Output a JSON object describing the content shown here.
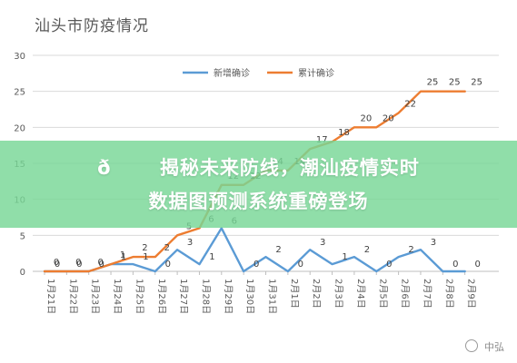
{
  "chart_data": {
    "type": "line",
    "title": "汕头市防疫情况",
    "categories": [
      "1月21日",
      "1月22日",
      "1月23日",
      "1月24日",
      "1月25日",
      "1月26日",
      "1月27日",
      "1月28日",
      "1月29日",
      "1月30日",
      "1月31日",
      "2月1日",
      "2月2日",
      "2月3日",
      "2月4日",
      "2月5日",
      "2月6日",
      "2月7日",
      "2月8日",
      "2月9日"
    ],
    "series": [
      {
        "name": "新增确诊",
        "color": "#5b9bd5",
        "values": [
          0,
          0,
          0,
          1,
          1,
          0,
          3,
          1,
          6,
          0,
          2,
          0,
          3,
          1,
          2,
          0,
          2,
          3,
          0,
          0
        ]
      },
      {
        "name": "累计确诊",
        "color": "#ed7d31",
        "values": [
          0,
          0,
          0,
          1,
          2,
          2,
          5,
          6,
          12,
          12,
          14,
          14,
          17,
          18,
          20,
          20,
          22,
          25,
          25,
          25
        ]
      }
    ],
    "ylim": [
      0,
      30
    ],
    "yticks": [
      0,
      5,
      10,
      15,
      20,
      25,
      30
    ],
    "grid": true,
    "legend": "top"
  },
  "overlay": {
    "line1": "ð揭秘未来防线，潮汕疫情实时",
    "line2": "数据图预测系统重磅登场"
  },
  "watermark": {
    "text": "中弘"
  }
}
